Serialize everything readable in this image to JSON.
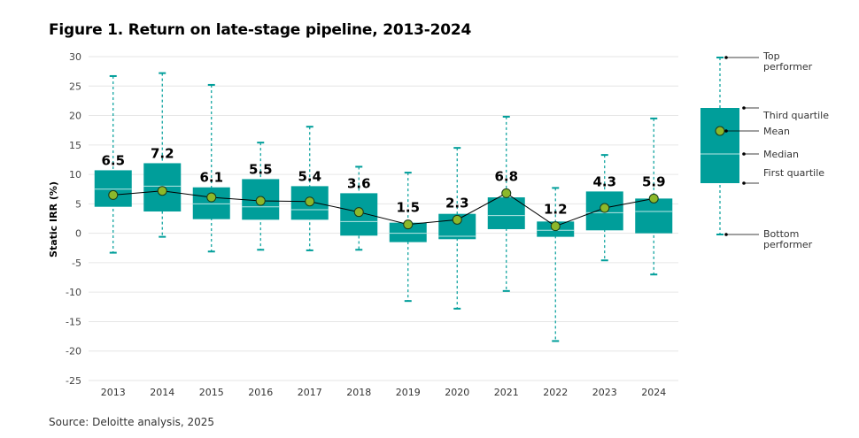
{
  "title": "Figure 1. Return on late-stage pipeline, 2013-2024",
  "source": "Source: Deloitte analysis, 2025",
  "colors": {
    "box": "#009e9a",
    "median_line": "#b7e6e4",
    "whisker": "#009e9a",
    "mean_fill": "#8cb82a",
    "mean_stroke": "#1a3a1a",
    "mean_line": "#000000",
    "grid": "#e6e6e6"
  },
  "chart_data": {
    "type": "box",
    "title": "Figure 1. Return on late-stage pipeline, 2013-2024",
    "ylabel": "Static IRR (%)",
    "xlabel": "",
    "ylim": [
      -25,
      30
    ],
    "yticks": [
      -25,
      -20,
      -15,
      -10,
      -5,
      0,
      5,
      10,
      15,
      20,
      25,
      30
    ],
    "grid": true,
    "categories": [
      "2013",
      "2014",
      "2015",
      "2016",
      "2017",
      "2018",
      "2019",
      "2020",
      "2021",
      "2022",
      "2023",
      "2024"
    ],
    "series": [
      {
        "name": "Top performer",
        "values": [
          26.7,
          27.2,
          25.2,
          15.4,
          18.1,
          11.3,
          10.3,
          14.5,
          19.8,
          7.7,
          13.3,
          19.5
        ]
      },
      {
        "name": "Third quartile",
        "values": [
          10.7,
          11.9,
          7.8,
          9.2,
          8.0,
          6.8,
          1.8,
          3.3,
          6.1,
          2.0,
          7.1,
          5.9
        ]
      },
      {
        "name": "Median",
        "values": [
          7.5,
          8.0,
          5.0,
          4.5,
          4.0,
          2.0,
          0.0,
          -0.5,
          3.0,
          0.5,
          3.5,
          3.7
        ]
      },
      {
        "name": "First quartile",
        "values": [
          4.5,
          3.7,
          2.4,
          2.3,
          2.3,
          -0.4,
          -1.5,
          -1.0,
          0.7,
          -0.6,
          0.5,
          0.0
        ]
      },
      {
        "name": "Bottom performer",
        "values": [
          -3.3,
          -0.6,
          -3.1,
          -2.8,
          -2.9,
          -2.8,
          -11.5,
          -12.8,
          -9.8,
          -18.3,
          -4.6,
          -7.0
        ]
      },
      {
        "name": "Mean",
        "values": [
          6.5,
          7.2,
          6.1,
          5.5,
          5.4,
          3.6,
          1.5,
          2.3,
          6.8,
          1.2,
          4.3,
          5.9
        ]
      }
    ],
    "mean_labels": [
      "6.5",
      "7.2",
      "6.1",
      "5.5",
      "5.4",
      "3.6",
      "1.5",
      "2.3",
      "6.8",
      "1.2",
      "4.3",
      "5.9"
    ],
    "legend": {
      "placement": "right",
      "items": [
        "Top performer",
        "Third quartile",
        "Mean",
        "Median",
        "First quartile",
        "Bottom performer"
      ]
    }
  }
}
